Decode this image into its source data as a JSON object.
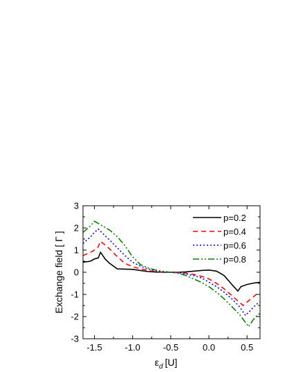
{
  "chart_data": {
    "type": "line",
    "title": "",
    "xlabel": "ε",
    "xlabel_sub": "d",
    "xlabel_unit": "[U]",
    "ylabel": "Exchange field [ Γ ]",
    "xlim": [
      -1.65,
      0.67
    ],
    "ylim": [
      -3,
      3
    ],
    "xticks": [
      -1.5,
      -1.0,
      -0.5,
      0.0,
      0.5
    ],
    "xtick_labels": [
      "-1.5",
      "-1.0",
      "-0.5",
      "0.0",
      "0.5"
    ],
    "yticks": [
      -3,
      -2,
      -1,
      0,
      1,
      2,
      3
    ],
    "ytick_labels": [
      "-3",
      "-2",
      "-1",
      "0",
      "1",
      "2",
      "3"
    ],
    "grid": false,
    "legend_position": "top-right",
    "series": [
      {
        "name": "p=0.2",
        "color": "#000000",
        "dash": "solid",
        "x": [
          -1.65,
          -1.55,
          -1.5,
          -1.45,
          -1.42,
          -1.36,
          -1.3,
          -1.2,
          -1.0,
          -0.9,
          -0.8,
          -0.7,
          -0.6,
          -0.5,
          -0.4,
          -0.3,
          -0.2,
          -0.1,
          0.0,
          0.1,
          0.2,
          0.3,
          0.38,
          0.42,
          0.5,
          0.6,
          0.67
        ],
        "values": [
          0.45,
          0.5,
          0.6,
          0.65,
          0.9,
          0.6,
          0.4,
          0.15,
          0.13,
          0.08,
          0.03,
          0.01,
          0.0,
          0.0,
          0.0,
          0.02,
          0.05,
          0.08,
          0.1,
          0.05,
          -0.15,
          -0.55,
          -0.85,
          -0.65,
          -0.55,
          -0.48,
          -0.45
        ]
      },
      {
        "name": "p=0.4",
        "color": "#ff0000",
        "dash": "7,5",
        "x": [
          -1.65,
          -1.55,
          -1.5,
          -1.45,
          -1.42,
          -1.3,
          -1.2,
          -1.1,
          -1.0,
          -0.9,
          -0.8,
          -0.7,
          -0.6,
          -0.5,
          -0.4,
          -0.3,
          -0.2,
          -0.1,
          0.0,
          0.1,
          0.2,
          0.3,
          0.38,
          0.45,
          0.55,
          0.62,
          0.67
        ],
        "values": [
          0.75,
          0.9,
          1.0,
          1.15,
          1.4,
          1.05,
          0.7,
          0.4,
          0.25,
          0.16,
          0.08,
          0.03,
          0.01,
          0.0,
          -0.01,
          -0.04,
          -0.1,
          -0.18,
          -0.3,
          -0.5,
          -0.75,
          -1.05,
          -1.3,
          -1.5,
          -1.2,
          -1.0,
          -0.9
        ]
      },
      {
        "name": "p=0.6",
        "color": "#0000ff",
        "dash": "2,3",
        "x": [
          -1.65,
          -1.55,
          -1.5,
          -1.45,
          -1.3,
          -1.2,
          -1.1,
          -1.0,
          -0.9,
          -0.8,
          -0.7,
          -0.6,
          -0.5,
          -0.4,
          -0.3,
          -0.2,
          -0.1,
          0.0,
          0.1,
          0.2,
          0.3,
          0.4,
          0.48,
          0.55,
          0.62,
          0.67
        ],
        "values": [
          1.3,
          1.6,
          1.8,
          1.95,
          1.45,
          1.1,
          0.75,
          0.45,
          0.28,
          0.15,
          0.07,
          0.02,
          0.0,
          -0.02,
          -0.08,
          -0.15,
          -0.25,
          -0.45,
          -0.65,
          -0.9,
          -1.2,
          -1.55,
          -1.95,
          -1.7,
          -1.45,
          -1.35
        ]
      },
      {
        "name": "p=0.8",
        "color": "#008000",
        "dash": "9,3,2,3,2,3",
        "x": [
          -1.65,
          -1.55,
          -1.5,
          -1.45,
          -1.3,
          -1.2,
          -1.1,
          -1.0,
          -0.9,
          -0.8,
          -0.7,
          -0.6,
          -0.5,
          -0.4,
          -0.3,
          -0.2,
          -0.1,
          0.0,
          0.1,
          0.2,
          0.3,
          0.4,
          0.52,
          0.58,
          0.63,
          0.67
        ],
        "values": [
          1.8,
          2.1,
          2.3,
          2.2,
          1.9,
          1.6,
          1.2,
          0.7,
          0.35,
          0.2,
          0.1,
          0.04,
          0.0,
          -0.05,
          -0.15,
          -0.3,
          -0.45,
          -0.65,
          -0.9,
          -1.2,
          -1.55,
          -1.9,
          -2.45,
          -2.15,
          -1.95,
          -1.85
        ]
      }
    ]
  }
}
